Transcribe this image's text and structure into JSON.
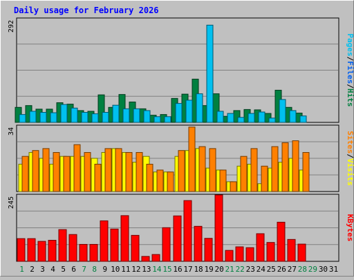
{
  "chart_data": {
    "type": "bar",
    "title": "Daily usage for February 2026",
    "days": [
      "1",
      "2",
      "3",
      "4",
      "5",
      "6",
      "7",
      "8",
      "9",
      "10",
      "11",
      "12",
      "13",
      "14",
      "15",
      "16",
      "17",
      "18",
      "19",
      "20",
      "21",
      "22",
      "23",
      "24",
      "25",
      "26",
      "27",
      "28",
      "29",
      "30",
      "31"
    ],
    "weekend_days": [
      "1",
      "7",
      "8",
      "14",
      "15",
      "21",
      "22",
      "28",
      "29"
    ],
    "panels": [
      {
        "id": "hits-files-pages",
        "ymax_label": "292",
        "ymax": 292,
        "side_label": [
          "Pages",
          "/",
          "Files",
          "/",
          "Hits"
        ],
        "side_label_colors": [
          "#00c0f0",
          "#000000",
          "#0060f0",
          "#000000",
          "#008040"
        ],
        "series": [
          {
            "name": "Hits",
            "color": "#008040",
            "values": [
              42,
              47,
              37,
              37,
              55,
              51,
              33,
              31,
              77,
              42,
              78,
              57,
              38,
              20,
              22,
              67,
              79,
              121,
              47,
              80,
              17,
              33,
              36,
              35,
              25,
              90,
              42,
              26,
              0,
              0,
              0
            ]
          },
          {
            "name": "Files",
            "color": "#0060f0",
            "values": [
              0,
              0,
              0,
              0,
              0,
              0,
              0,
              0,
              0,
              0,
              0,
              0,
              0,
              0,
              0,
              0,
              0,
              0,
              0,
              0,
              0,
              0,
              0,
              0,
              0,
              0,
              0,
              0,
              0,
              0,
              0
            ]
          },
          {
            "name": "Pages",
            "color": "#00c0f0",
            "values": [
              22,
              31,
              28,
              27,
              50,
              40,
              28,
              24,
              28,
              48,
              38,
              38,
              33,
              16,
              16,
              53,
              62,
              80,
              272,
              31,
              25,
              14,
              25,
              29,
              12,
              64,
              33,
              18,
              0,
              0,
              0
            ]
          }
        ]
      },
      {
        "id": "visits-sites",
        "ymax_label": "34",
        "ymax": 34,
        "side_label": [
          "Sites",
          "/",
          "Visits"
        ],
        "side_label_colors": [
          "#ff8000",
          "#000000",
          "#ffff00"
        ],
        "series": [
          {
            "name": "Visits",
            "color": "#ffff00",
            "values": [
              14,
              20,
              17,
              14,
              18,
              18,
              18,
              17,
              20,
              22,
              20,
              15,
              18,
              10,
              10,
              18,
              21,
              22,
              12,
              11,
              5,
              13,
              14,
              4,
              12,
              15,
              17,
              11,
              0,
              0,
              0
            ]
          },
          {
            "name": "Sites",
            "color": "#ff8000",
            "values": [
              18,
              21,
              22,
              20,
              18,
              24,
              20,
              14,
              22,
              22,
              20,
              20,
              14,
              11,
              10,
              21,
              33,
              23,
              22,
              11,
              5,
              18,
              22,
              13,
              23,
              25,
              26,
              20,
              0,
              0,
              0
            ]
          }
        ]
      },
      {
        "id": "kbytes",
        "ymax_label": "245",
        "ymax": 245,
        "side_label": [
          "KBytes"
        ],
        "side_label_colors": [
          "#ff0000"
        ],
        "series": [
          {
            "name": "KBytes",
            "color": "#ff0000",
            "values": [
              83,
              83,
              73,
              77,
              116,
              98,
              62,
              62,
              148,
              118,
              167,
              95,
              18,
              25,
              123,
              166,
              222,
              128,
              84,
              245,
              40,
              53,
              50,
              101,
              69,
              143,
              80,
              63,
              0,
              0,
              0
            ]
          }
        ]
      }
    ]
  }
}
